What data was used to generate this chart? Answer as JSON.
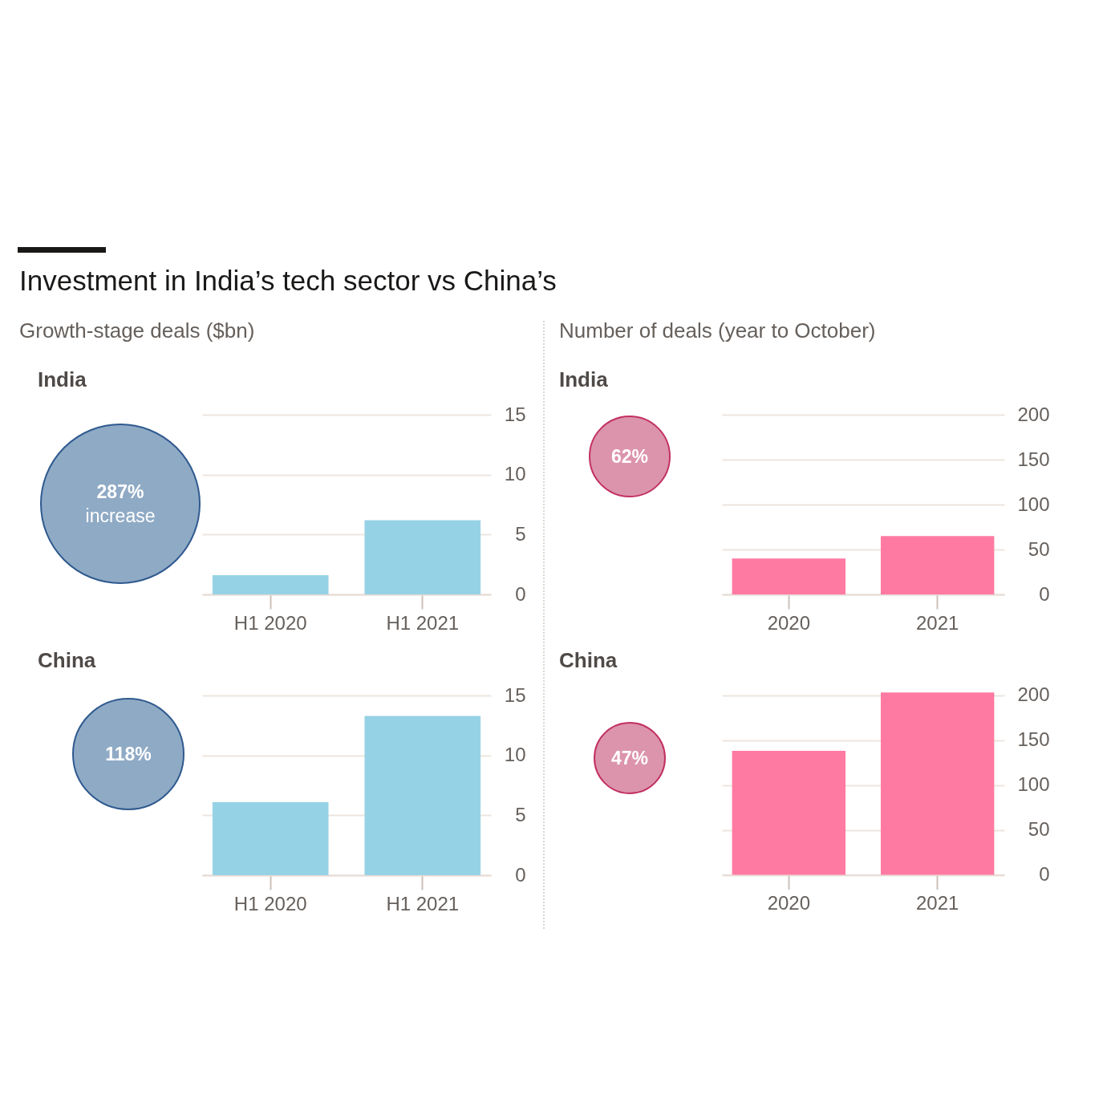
{
  "chart_data": [
    {
      "type": "bar",
      "title": "Investment in India’s tech sector vs China’s",
      "subtitle": "Growth-stage deals ($bn)",
      "annotations": [
        "India",
        "287% increase"
      ],
      "categories": [
        "H1 2020",
        "H1 2021"
      ],
      "values": [
        1.6,
        6.2
      ],
      "color": "#96d2e6",
      "ylim": [
        0,
        15
      ],
      "yticks": [
        0,
        5,
        10,
        15
      ],
      "grid": "y"
    },
    {
      "type": "bar",
      "title": "China",
      "annotations": [
        "118%"
      ],
      "categories": [
        "H1 2020",
        "H1 2021"
      ],
      "values": [
        6.1,
        13.3
      ],
      "color": "#96d2e6",
      "ylim": [
        0,
        15
      ],
      "yticks": [
        0,
        5,
        10,
        15
      ],
      "grid": "y"
    },
    {
      "type": "bar",
      "subtitle": "Number of deals (year to October)",
      "annotations": [
        "India",
        "62%"
      ],
      "categories": [
        "2020",
        "2021"
      ],
      "values": [
        40,
        65
      ],
      "color": "#ff7aa2",
      "ylim": [
        0,
        200
      ],
      "yticks": [
        0,
        50,
        100,
        150,
        200
      ],
      "grid": "y"
    },
    {
      "type": "bar",
      "title": "China",
      "annotations": [
        "47%"
      ],
      "categories": [
        "2020",
        "2021"
      ],
      "values": [
        138,
        203
      ],
      "color": "#ff7aa2",
      "ylim": [
        0,
        205
      ],
      "yticks": [
        0,
        50,
        100,
        150,
        200
      ],
      "grid": "y"
    }
  ]
}
